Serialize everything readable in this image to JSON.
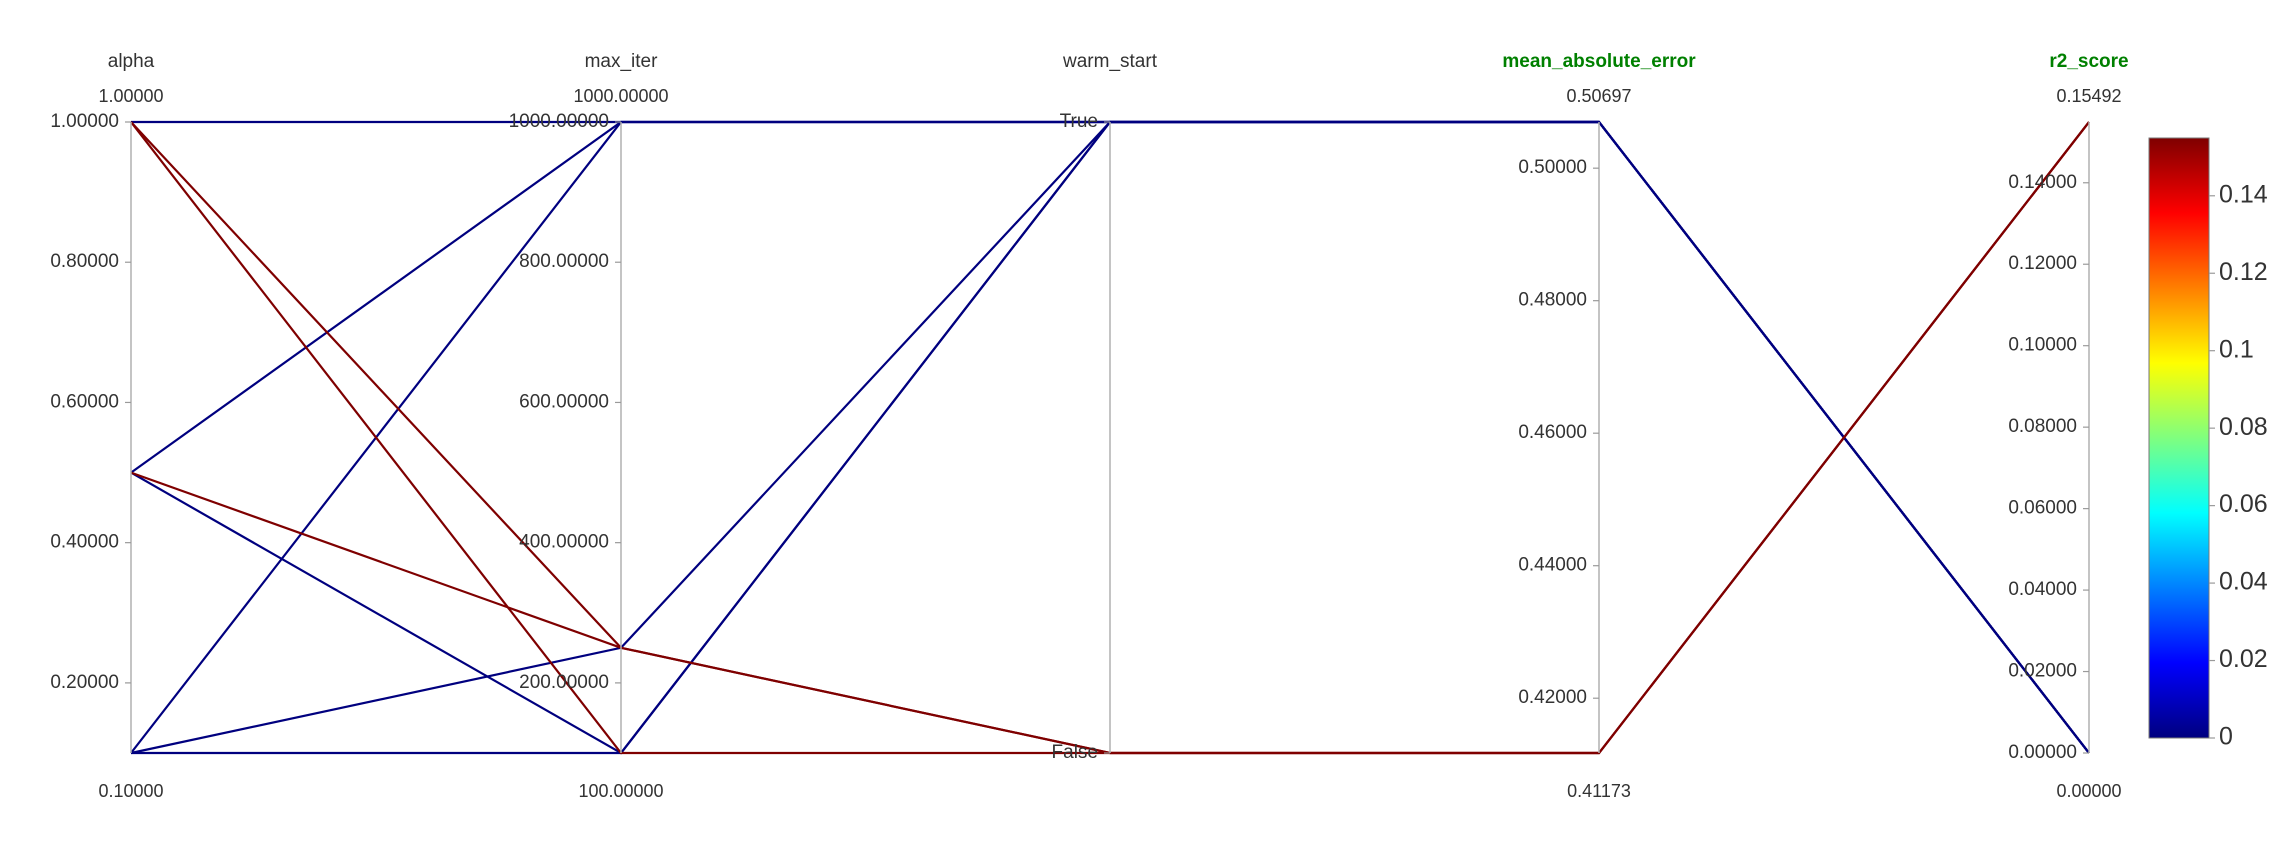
{
  "chart_data": {
    "type": "parallel_coordinates",
    "color_by": "r2_score",
    "colorscale": "jet",
    "colors": {
      "jet_stops": [
        "#00007f",
        "#0000ff",
        "#007fff",
        "#00ffff",
        "#7fff7f",
        "#ffff00",
        "#ff7f00",
        "#ff0000",
        "#7f0000"
      ],
      "metric_title": "#008000",
      "axis": "#b0b0b0",
      "text": "#333333"
    },
    "axes": [
      {
        "name": "alpha",
        "is_metric": false,
        "kind": "numeric",
        "range": [
          0.1,
          1.0
        ],
        "top_label": "1.00000",
        "bottom_label": "0.10000",
        "ticks": [
          {
            "value": 1.0,
            "label": "1.00000"
          },
          {
            "value": 0.8,
            "label": "0.80000"
          },
          {
            "value": 0.6,
            "label": "0.60000"
          },
          {
            "value": 0.4,
            "label": "0.40000"
          },
          {
            "value": 0.2,
            "label": "0.20000"
          }
        ]
      },
      {
        "name": "max_iter",
        "is_metric": false,
        "kind": "numeric",
        "range": [
          100,
          1000
        ],
        "top_label": "1000.00000",
        "bottom_label": "100.00000",
        "ticks": [
          {
            "value": 1000,
            "label": "1000.00000"
          },
          {
            "value": 800,
            "label": "800.00000"
          },
          {
            "value": 600,
            "label": "600.00000"
          },
          {
            "value": 400,
            "label": "400.00000"
          },
          {
            "value": 200,
            "label": "200.00000"
          }
        ]
      },
      {
        "name": "warm_start",
        "is_metric": false,
        "kind": "categorical",
        "categories": [
          "False",
          "True"
        ],
        "top_label": "",
        "bottom_label": "",
        "ticks": [
          {
            "value": 1,
            "label": "True"
          },
          {
            "value": 0,
            "label": "False"
          }
        ]
      },
      {
        "name": "mean_absolute_error",
        "is_metric": true,
        "kind": "numeric",
        "range": [
          0.41173,
          0.50697
        ],
        "top_label": "0.50697",
        "bottom_label": "0.41173",
        "ticks": [
          {
            "value": 0.5,
            "label": "0.50000"
          },
          {
            "value": 0.48,
            "label": "0.48000"
          },
          {
            "value": 0.46,
            "label": "0.46000"
          },
          {
            "value": 0.44,
            "label": "0.44000"
          },
          {
            "value": 0.42,
            "label": "0.42000"
          }
        ]
      },
      {
        "name": "r2_score",
        "is_metric": true,
        "kind": "numeric",
        "range": [
          0.0,
          0.15492
        ],
        "top_label": "0.15492",
        "bottom_label": "0.00000",
        "ticks": [
          {
            "value": 0.14,
            "label": "0.14000"
          },
          {
            "value": 0.12,
            "label": "0.12000"
          },
          {
            "value": 0.1,
            "label": "0.10000"
          },
          {
            "value": 0.08,
            "label": "0.08000"
          },
          {
            "value": 0.06,
            "label": "0.06000"
          },
          {
            "value": 0.04,
            "label": "0.04000"
          },
          {
            "value": 0.02,
            "label": "0.02000"
          },
          {
            "value": 0.0,
            "label": "0.00000"
          }
        ]
      }
    ],
    "trials": [
      {
        "alpha": 1.0,
        "max_iter": 1000,
        "warm_start": 1,
        "mean_absolute_error": 0.50697,
        "r2_score": 0.0
      },
      {
        "alpha": 1.0,
        "max_iter": 100,
        "warm_start": 0,
        "mean_absolute_error": 0.41173,
        "r2_score": 0.15492
      },
      {
        "alpha": 1.0,
        "max_iter": 250,
        "warm_start": 0,
        "mean_absolute_error": 0.41173,
        "r2_score": 0.15492
      },
      {
        "alpha": 0.5,
        "max_iter": 1000,
        "warm_start": 1,
        "mean_absolute_error": 0.50697,
        "r2_score": 0.0
      },
      {
        "alpha": 0.5,
        "max_iter": 250,
        "warm_start": 0,
        "mean_absolute_error": 0.41173,
        "r2_score": 0.15492
      },
      {
        "alpha": 0.5,
        "max_iter": 100,
        "warm_start": 1,
        "mean_absolute_error": 0.50697,
        "r2_score": 0.0
      },
      {
        "alpha": 0.1,
        "max_iter": 1000,
        "warm_start": 1,
        "mean_absolute_error": 0.50697,
        "r2_score": 0.0
      },
      {
        "alpha": 0.1,
        "max_iter": 250,
        "warm_start": 1,
        "mean_absolute_error": 0.50697,
        "r2_score": 0.0
      },
      {
        "alpha": 0.1,
        "max_iter": 100,
        "warm_start": 1,
        "mean_absolute_error": 0.50697,
        "r2_score": 0.0
      }
    ],
    "colorbar": {
      "range": [
        0,
        0.15492
      ],
      "ticks": [
        {
          "value": 0,
          "label": "0"
        },
        {
          "value": 0.02,
          "label": "0.02"
        },
        {
          "value": 0.04,
          "label": "0.04"
        },
        {
          "value": 0.06,
          "label": "0.06"
        },
        {
          "value": 0.08,
          "label": "0.08"
        },
        {
          "value": 0.1,
          "label": "0.1"
        },
        {
          "value": 0.12,
          "label": "0.12"
        },
        {
          "value": 0.14,
          "label": "0.14"
        }
      ]
    }
  }
}
